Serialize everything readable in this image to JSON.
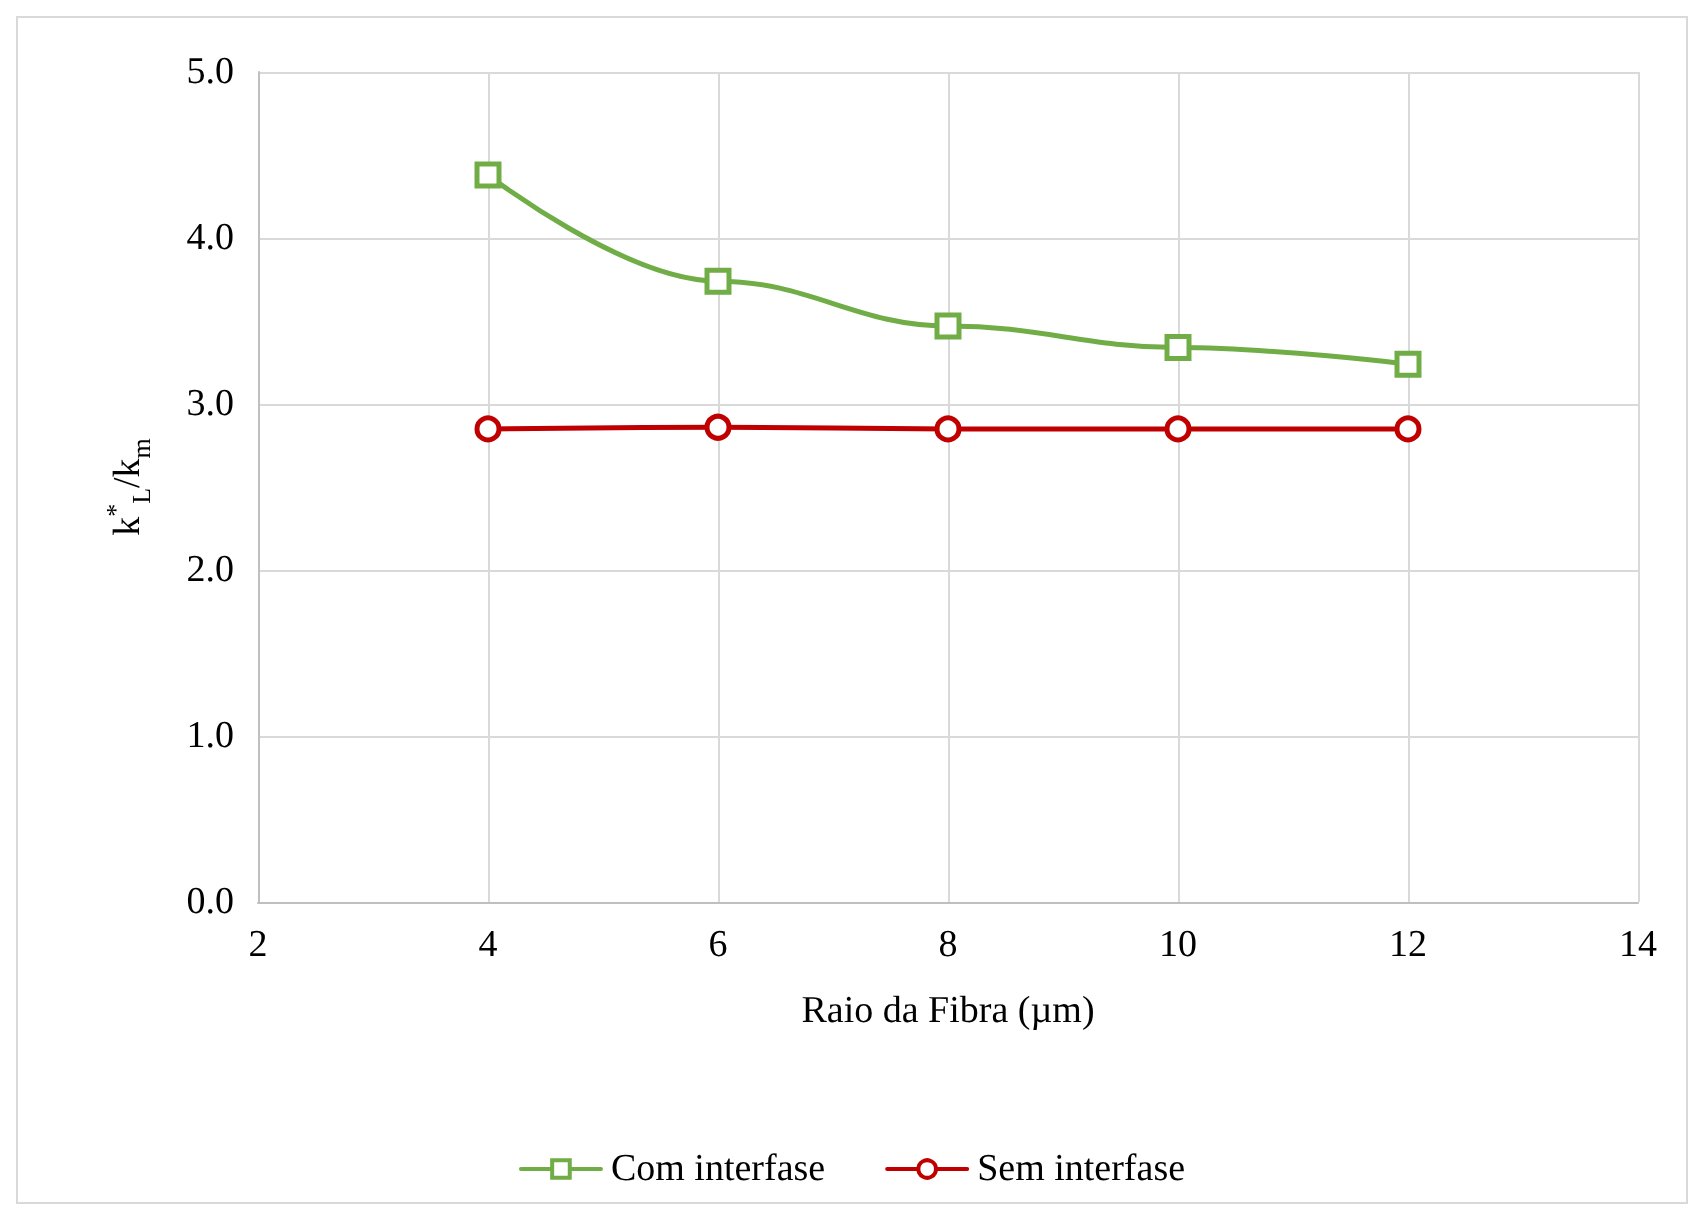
{
  "chart_data": {
    "type": "line",
    "xlabel": "Raio da Fibra (µm)",
    "ylabel": "k$^{*}$$_{L}$/k$_{m}$",
    "x": [
      4,
      6,
      8,
      10,
      12
    ],
    "series": [
      {
        "name": "Com interfase",
        "color": "#70ad47",
        "marker": "square",
        "values": [
          4.38,
          3.74,
          3.47,
          3.34,
          3.24
        ]
      },
      {
        "name": "Sem interfase",
        "color": "#c00000",
        "marker": "circle",
        "values": [
          2.85,
          2.86,
          2.85,
          2.85,
          2.85
        ]
      }
    ],
    "xlim": [
      2,
      14
    ],
    "xticks": [
      2,
      4,
      6,
      8,
      10,
      12,
      14
    ],
    "ylim": [
      0,
      5
    ],
    "yticks": [
      {
        "value": 0,
        "label": "0.0"
      },
      {
        "value": 1,
        "label": "1.0"
      },
      {
        "value": 2,
        "label": "2.0"
      },
      {
        "value": 3,
        "label": "3.0"
      },
      {
        "value": 4,
        "label": "4.0"
      },
      {
        "value": 5,
        "label": "5.0"
      }
    ],
    "grid": true,
    "legend": "bottom",
    "line_style": "solid"
  }
}
